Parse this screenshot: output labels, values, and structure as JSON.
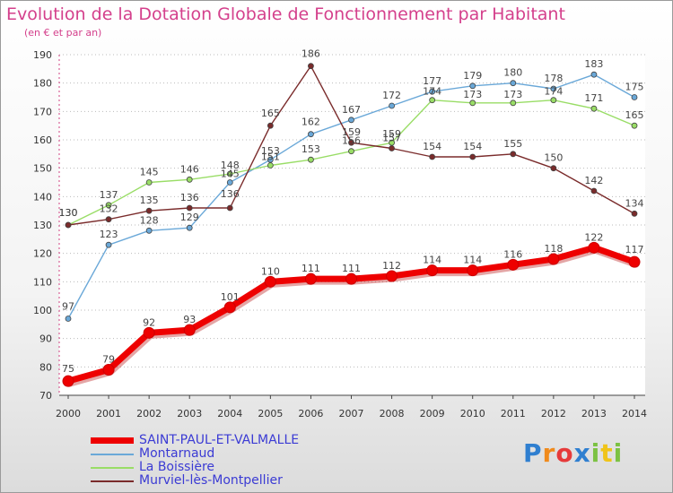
{
  "header": {
    "title": "Evolution de la Dotation Globale de Fonctionnement par Habitant",
    "subtitle": "(en € et par an)"
  },
  "chart_data": {
    "type": "line",
    "title": "Evolution de la Dotation Globale de Fonctionnement par Habitant",
    "ylabel": "(en € et par an)",
    "xlabel": "",
    "x": [
      "2000",
      "2001",
      "2002",
      "2003",
      "2004",
      "2005",
      "2006",
      "2007",
      "2008",
      "2009",
      "2010",
      "2011",
      "2012",
      "2013",
      "2014"
    ],
    "ylim": [
      70,
      190
    ],
    "yticks": [
      70,
      80,
      90,
      100,
      110,
      120,
      130,
      140,
      150,
      160,
      170,
      180,
      190
    ],
    "grid": "horizontal-dotted",
    "legend_position": "bottom-left",
    "series": [
      {
        "name": "SAINT-PAUL-ET-VALMALLE",
        "color": "#ee0000",
        "values": [
          75,
          79,
          92,
          93,
          101,
          110,
          111,
          111,
          112,
          114,
          114,
          116,
          118,
          122,
          117
        ]
      },
      {
        "name": "Montarnaud",
        "color": "#6aa8d8",
        "values": [
          97,
          123,
          128,
          129,
          145,
          153,
          162,
          167,
          172,
          177,
          179,
          180,
          178,
          183,
          175
        ]
      },
      {
        "name": "La Boissière",
        "color": "#99dd66",
        "values": [
          130,
          137,
          145,
          146,
          148,
          151,
          153,
          156,
          159,
          174,
          173,
          173,
          174,
          171,
          165
        ]
      },
      {
        "name": "Murviel-lès-Montpellier",
        "color": "#7a2b2b",
        "values": [
          130,
          132,
          135,
          136,
          136,
          165,
          186,
          159,
          157,
          154,
          154,
          155,
          150,
          142,
          134
        ]
      }
    ]
  },
  "logo": {
    "letters": [
      "P",
      "r",
      "o",
      "x",
      "i",
      "t",
      "i"
    ],
    "colors": [
      "#2f7fd0",
      "#f08a1c",
      "#e63a3a",
      "#2f7fd0",
      "#7cc243",
      "#f0c419",
      "#7cc243"
    ]
  }
}
